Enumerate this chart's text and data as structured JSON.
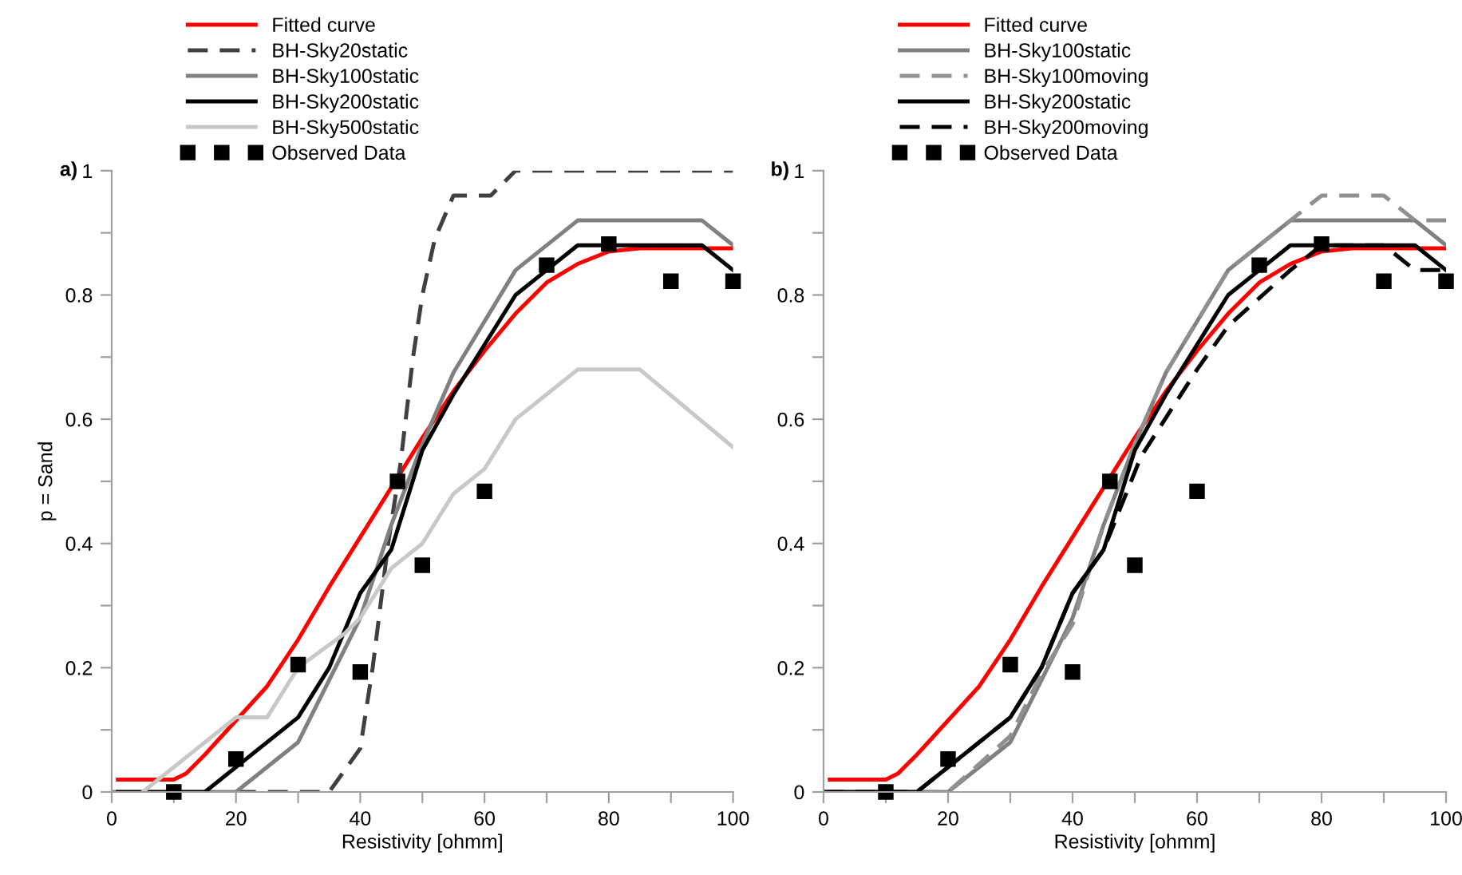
{
  "chart_data": [
    {
      "type": "line",
      "title": "a)",
      "xlabel": "Resistivity [ohmm]",
      "ylabel": "p = Sand",
      "xlim": [
        0,
        100
      ],
      "ylim": [
        0,
        1
      ],
      "xticks": [
        0,
        {
          "value": 10,
          "label": null
        },
        20,
        {
          "value": 30,
          "label": null
        },
        40,
        {
          "value": 50,
          "label": null
        },
        60,
        {
          "value": 70,
          "label": null
        },
        80,
        {
          "value": 90,
          "label": null
        },
        100
      ],
      "yticks": [
        0,
        {
          "value": 0.1,
          "label": null
        },
        0.2,
        {
          "value": 0.3,
          "label": null
        },
        0.4,
        {
          "value": 0.5,
          "label": null
        },
        0.6,
        {
          "value": 0.7,
          "label": null
        },
        0.8,
        {
          "value": 0.9,
          "label": null
        },
        1
      ],
      "grid": false,
      "legend": "top left",
      "series": [
        {
          "name": "Fitted curve",
          "color": "#ff0000",
          "line_style": "solid",
          "x": [
            1,
            10,
            12,
            15,
            20,
            25,
            30,
            35,
            40,
            45,
            50,
            55,
            60,
            65,
            70,
            75,
            80,
            85,
            90,
            100
          ],
          "values": [
            0.02,
            0.02,
            0.03,
            0.06,
            0.115,
            0.17,
            0.245,
            0.33,
            0.41,
            0.49,
            0.57,
            0.645,
            0.71,
            0.77,
            0.82,
            0.85,
            0.87,
            0.875,
            0.875,
            0.875
          ]
        },
        {
          "name": "BH-Sky20static",
          "color": "#404040",
          "line_style": "dashed",
          "x": [
            20,
            35,
            40,
            42,
            44.5,
            46.5,
            48.5,
            50,
            52,
            55,
            61,
            65,
            100
          ],
          "values": [
            0,
            0,
            0.07,
            0.2,
            0.4,
            0.53,
            0.7,
            0.8,
            0.89,
            0.96,
            0.96,
            1,
            1
          ]
        },
        {
          "name": "BH-Sky100static",
          "color": "#808080",
          "line_style": "solid",
          "x": [
            0,
            20,
            30,
            40,
            45,
            50,
            55,
            65,
            75,
            95,
            100
          ],
          "values": [
            0,
            0,
            0.08,
            0.28,
            0.43,
            0.56,
            0.675,
            0.84,
            0.92,
            0.92,
            0.88
          ]
        },
        {
          "name": "BH-Sky200static",
          "color": "#000000",
          "line_style": "solid",
          "x": [
            1,
            15,
            30,
            35,
            40,
            45,
            50,
            55,
            65,
            70,
            75,
            95,
            100
          ],
          "values": [
            0,
            0,
            0.12,
            0.2,
            0.32,
            0.39,
            0.55,
            0.64,
            0.8,
            0.84,
            0.88,
            0.88,
            0.84
          ]
        },
        {
          "name": "BH-Sky500static",
          "color": "#c8c8c8",
          "line_style": "solid",
          "x": [
            5,
            20,
            25,
            30,
            37.5,
            40,
            45,
            50,
            55,
            60,
            65,
            75,
            85,
            100
          ],
          "values": [
            0,
            0.12,
            0.12,
            0.2,
            0.255,
            0.28,
            0.36,
            0.4,
            0.48,
            0.52,
            0.6,
            0.68,
            0.68,
            0.555
          ]
        },
        {
          "name": "Observed Data",
          "type": "scatter",
          "marker": "square",
          "color": "#000000",
          "x": [
            10,
            20,
            30,
            40,
            46,
            50,
            60,
            70,
            80,
            90,
            100
          ],
          "values": [
            0,
            0.053,
            0.205,
            0.193,
            0.5,
            0.365,
            0.484,
            0.848,
            0.882,
            0.822,
            0.822
          ]
        }
      ]
    },
    {
      "type": "line",
      "title": "b)",
      "xlabel": "Resistivity [ohmm]",
      "xlim": [
        0,
        100
      ],
      "ylim": [
        0,
        1
      ],
      "xticks": [
        0,
        {
          "value": 10,
          "label": null
        },
        20,
        {
          "value": 30,
          "label": null
        },
        40,
        {
          "value": 50,
          "label": null
        },
        60,
        {
          "value": 70,
          "label": null
        },
        80,
        {
          "value": 90,
          "label": null
        },
        100
      ],
      "yticks": [
        0,
        {
          "value": 0.1,
          "label": null
        },
        0.2,
        {
          "value": 0.3,
          "label": null
        },
        0.4,
        {
          "value": 0.5,
          "label": null
        },
        0.6,
        {
          "value": 0.7,
          "label": null
        },
        0.8,
        {
          "value": 0.9,
          "label": null
        },
        1
      ],
      "grid": false,
      "legend": "top left",
      "series": [
        {
          "name": "Fitted curve",
          "color": "#ff0000",
          "line_style": "solid",
          "x": [
            1,
            10,
            12,
            15,
            20,
            25,
            30,
            35,
            40,
            45,
            50,
            55,
            60,
            65,
            70,
            75,
            80,
            85,
            90,
            100
          ],
          "values": [
            0.02,
            0.02,
            0.03,
            0.06,
            0.115,
            0.17,
            0.245,
            0.33,
            0.41,
            0.49,
            0.57,
            0.645,
            0.71,
            0.77,
            0.82,
            0.85,
            0.87,
            0.875,
            0.875,
            0.875
          ]
        },
        {
          "name": "BH-Sky100static",
          "color": "#808080",
          "line_style": "solid",
          "x": [
            0,
            20,
            30,
            40,
            45,
            50,
            55,
            65,
            75,
            95,
            100
          ],
          "values": [
            0,
            0,
            0.08,
            0.28,
            0.43,
            0.56,
            0.675,
            0.84,
            0.92,
            0.92,
            0.88
          ]
        },
        {
          "name": "BH-Sky100moving",
          "color": "#909090",
          "line_style": "dashed",
          "x": [
            0,
            20,
            30,
            35,
            40,
            45,
            50,
            55,
            65,
            75,
            80,
            90,
            95,
            100
          ],
          "values": [
            0,
            0,
            0.09,
            0.19,
            0.27,
            0.43,
            0.56,
            0.675,
            0.84,
            0.92,
            0.96,
            0.96,
            0.92,
            0.92
          ]
        },
        {
          "name": "BH-Sky200static",
          "color": "#000000",
          "line_style": "solid",
          "x": [
            1,
            15,
            30,
            35,
            40,
            45,
            50,
            55,
            65,
            70,
            75,
            95,
            100
          ],
          "values": [
            0,
            0,
            0.12,
            0.2,
            0.32,
            0.39,
            0.55,
            0.64,
            0.8,
            0.84,
            0.88,
            0.88,
            0.84
          ]
        },
        {
          "name": "BH-Sky200moving",
          "color": "#000000",
          "line_style": "dashed",
          "x": [
            0,
            15,
            30,
            35,
            40,
            45,
            51,
            60,
            65,
            70,
            75,
            80,
            90,
            95,
            100
          ],
          "values": [
            0,
            0,
            0.12,
            0.2,
            0.32,
            0.39,
            0.54,
            0.68,
            0.75,
            0.795,
            0.84,
            0.88,
            0.88,
            0.84,
            0.84
          ]
        },
        {
          "name": "Observed Data",
          "type": "scatter",
          "marker": "square",
          "color": "#000000",
          "x": [
            10,
            20,
            30,
            40,
            46,
            50,
            60,
            70,
            80,
            90,
            100
          ],
          "values": [
            0,
            0.053,
            0.205,
            0.193,
            0.5,
            0.365,
            0.484,
            0.848,
            0.882,
            0.822,
            0.822
          ]
        }
      ]
    }
  ]
}
